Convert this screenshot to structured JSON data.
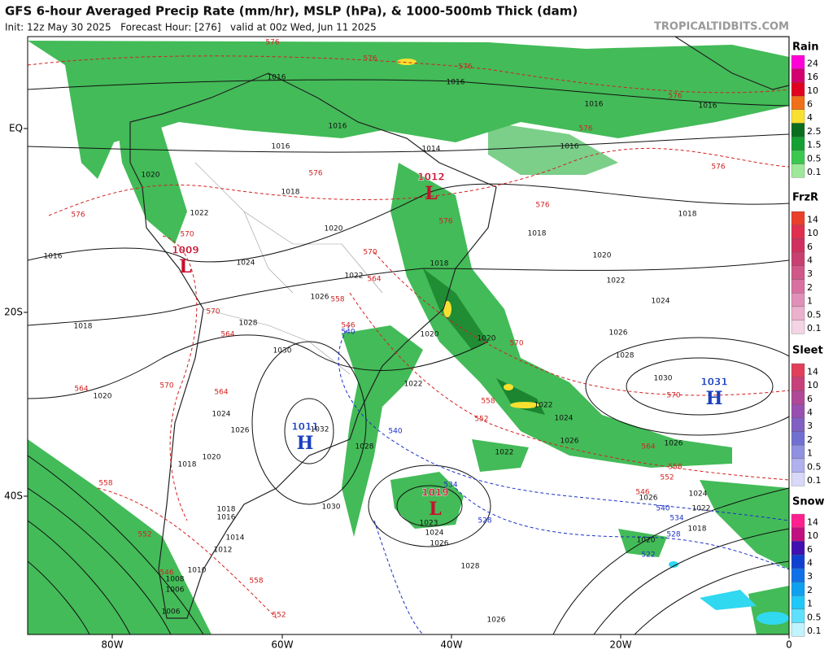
{
  "header": {
    "title": "GFS 6-hour Averaged Precip Rate (mm/hr), MSLP (hPa), & 1000-500mb Thick (dam)",
    "subtitle": "Init: 12z May 30 2025   Forecast Hour: [276]   valid at 00z Wed, Jun 11 2025",
    "source": "TROPICALTIDBITS.COM"
  },
  "axes": {
    "lat_labels": [
      "EQ",
      "20S",
      "40S"
    ],
    "lon_labels": [
      "80W",
      "60W",
      "40W",
      "20W",
      "0"
    ]
  },
  "pressure_centers": [
    {
      "type": "L",
      "value": 1012
    },
    {
      "type": "L",
      "value": 1009
    },
    {
      "type": "H",
      "value": 1011
    },
    {
      "type": "L",
      "value": 1019
    },
    {
      "type": "H",
      "value": 1031
    }
  ],
  "isobar_labels": [
    1016,
    1016,
    1016,
    1016,
    1016,
    1016,
    1016,
    1014,
    1020,
    1018,
    1022,
    1020,
    1018,
    1018,
    1016,
    1018,
    1024,
    1020,
    1022,
    1022,
    1026,
    1024,
    1018,
    1028,
    1020,
    1020,
    1026,
    1028,
    1030,
    1030,
    1020,
    1022,
    1024,
    1022,
    1024,
    1026,
    1026,
    1026,
    1032,
    1028,
    1022,
    1020,
    1018,
    1026,
    1024,
    1030,
    1018,
    1016,
    1022,
    1018,
    1023,
    1024,
    1014,
    1026,
    1020,
    1012,
    1028,
    1010,
    1008,
    1006,
    1006,
    1026
  ],
  "thickness_labels_warm": [
    576,
    576,
    576,
    576,
    576,
    576,
    576,
    576,
    576,
    576,
    570,
    570,
    564,
    558,
    570,
    564,
    546,
    570,
    564,
    564,
    570,
    558,
    552,
    570,
    564,
    558,
    552,
    546,
    558,
    552,
    546,
    558,
    552
  ],
  "thickness_labels_cold": [
    540,
    540,
    534,
    528,
    540,
    534,
    528,
    522
  ],
  "legends": [
    {
      "title": "Rain",
      "levels": [
        24,
        16,
        10,
        6,
        4,
        2.5,
        1.5,
        0.5,
        0.1
      ],
      "colors": [
        "#ff00d8",
        "#d40070",
        "#e00020",
        "#f07018",
        "#f8e030",
        "#0a6e1e",
        "#14a033",
        "#3cc850",
        "#9ee89a"
      ]
    },
    {
      "title": "FrzR",
      "levels": [
        14,
        10,
        6,
        4,
        3,
        2,
        1,
        0.5,
        0.1
      ],
      "colors": [
        "#e8402a",
        "#e03050",
        "#d03060",
        "#c84070",
        "#d05888",
        "#d870a0",
        "#e090b8",
        "#eab0cc",
        "#f4d4e4"
      ]
    },
    {
      "title": "Sleet",
      "levels": [
        14,
        10,
        6,
        4,
        3,
        2,
        1,
        0.5,
        0.1
      ],
      "colors": [
        "#e0405a",
        "#c8407a",
        "#b04898",
        "#9850b0",
        "#8060c0",
        "#7070d0",
        "#9090e0",
        "#b0b0ee",
        "#d8d8f8"
      ]
    },
    {
      "title": "Snow",
      "levels": [
        14,
        10,
        6,
        4,
        3,
        2,
        1,
        0.5,
        0.1
      ],
      "colors": [
        "#ff2090",
        "#c01080",
        "#4010b0",
        "#1040d0",
        "#1070e8",
        "#10a0f0",
        "#20c8f8",
        "#60e0ff",
        "#c0f4ff"
      ]
    }
  ]
}
